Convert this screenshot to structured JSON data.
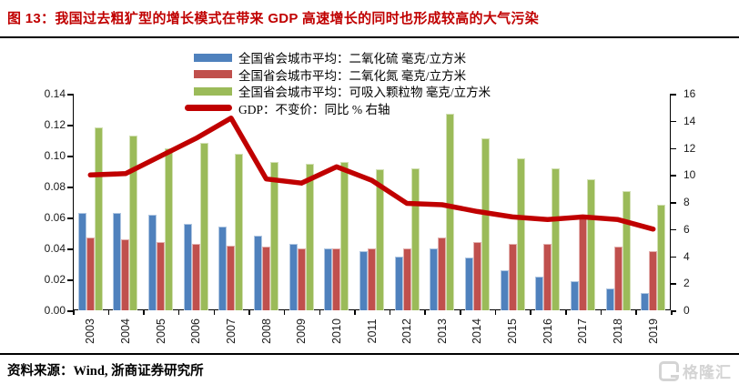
{
  "header": {
    "title": "图 13：我国过去粗犷型的增长模式在带来 GDP 高速增长的同时也形成较高的大气污染"
  },
  "footer": {
    "source": "资料来源：Wind, 浙商证券研究所",
    "logo_text": "格隆汇"
  },
  "chart_data": {
    "type": "bar",
    "subtype": "grouped-bars-with-line",
    "categories": [
      "2003",
      "2004",
      "2005",
      "2006",
      "2007",
      "2008",
      "2009",
      "2010",
      "2011",
      "2012",
      "2013",
      "2014",
      "2015",
      "2016",
      "2017",
      "2018",
      "2019"
    ],
    "series": [
      {
        "name": "全国省会城市平均：二氧化硫 毫克/立方米",
        "type": "bar",
        "axis": "left",
        "color": "#4F81BD",
        "values": [
          0.063,
          0.063,
          0.062,
          0.056,
          0.054,
          0.048,
          0.043,
          0.04,
          0.038,
          0.035,
          0.04,
          0.034,
          0.026,
          0.022,
          0.019,
          0.014,
          0.011
        ]
      },
      {
        "name": "全国省会城市平均：二氧化氮 毫克/立方米",
        "type": "bar",
        "axis": "left",
        "color": "#C0504D",
        "values": [
          0.047,
          0.046,
          0.044,
          0.043,
          0.042,
          0.041,
          0.04,
          0.04,
          0.04,
          0.04,
          0.047,
          0.044,
          0.043,
          0.043,
          0.06,
          0.041,
          0.038
        ]
      },
      {
        "name": "全国省会城市平均：可吸入颗粒物 毫克/立方米",
        "type": "bar",
        "axis": "left",
        "color": "#9BBB59",
        "values": [
          0.118,
          0.113,
          0.105,
          0.108,
          0.101,
          0.096,
          0.095,
          0.096,
          0.091,
          0.092,
          0.127,
          0.111,
          0.098,
          0.092,
          0.085,
          0.077,
          0.068
        ]
      },
      {
        "name": "GDP：不变价：同比 % 右轴",
        "type": "line",
        "axis": "right",
        "color": "#C00000",
        "values": [
          10.0,
          10.1,
          11.4,
          12.7,
          14.2,
          9.7,
          9.4,
          10.6,
          9.6,
          7.9,
          7.8,
          7.3,
          6.9,
          6.7,
          6.9,
          6.7,
          6.0
        ]
      }
    ],
    "left_axis": {
      "min": 0,
      "max": 0.14,
      "step": 0.02,
      "ticks": [
        "0.00",
        "0.02",
        "0.04",
        "0.06",
        "0.08",
        "0.10",
        "0.12",
        "0.14"
      ]
    },
    "right_axis": {
      "min": 0,
      "max": 16,
      "step": 2,
      "ticks": [
        "0",
        "2",
        "4",
        "6",
        "8",
        "10",
        "12",
        "14",
        "16"
      ]
    },
    "legend_position": "top-center",
    "grid": false,
    "xlabel": "",
    "ylabel": ""
  }
}
